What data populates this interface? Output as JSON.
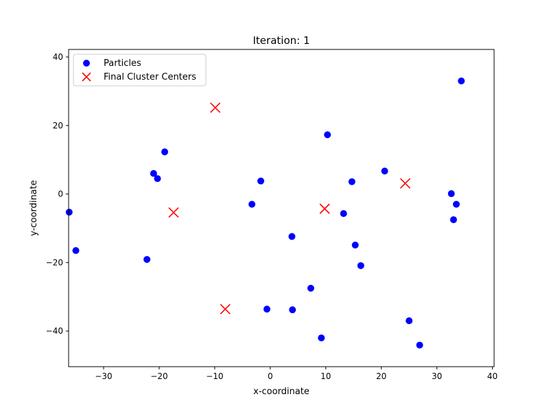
{
  "chart_data": {
    "type": "scatter",
    "title": "Iteration: 1",
    "xlabel": "x-coordinate",
    "ylabel": "y-coordinate",
    "xlim": [
      -36.3,
      40.3
    ],
    "ylim": [
      -50.4,
      42.2
    ],
    "xticks": [
      -30,
      -20,
      -10,
      0,
      10,
      20,
      30,
      40
    ],
    "xtick_labels": [
      "−30",
      "−20",
      "−10",
      "0",
      "10",
      "20",
      "30",
      "40"
    ],
    "yticks": [
      -40,
      -20,
      0,
      20,
      40
    ],
    "ytick_labels": [
      "−40",
      "−20",
      "0",
      "20",
      "40"
    ],
    "grid": false,
    "legend_position": "top-left",
    "series": [
      {
        "name": "Particles",
        "marker": "circle",
        "color": "#0000ff",
        "points": [
          {
            "x": 34.4,
            "y": 33.0
          },
          {
            "x": 10.3,
            "y": 17.3
          },
          {
            "x": -19.0,
            "y": 12.3
          },
          {
            "x": -21.0,
            "y": 6.0
          },
          {
            "x": -20.3,
            "y": 4.5
          },
          {
            "x": -1.7,
            "y": 3.8
          },
          {
            "x": 20.6,
            "y": 6.7
          },
          {
            "x": 14.7,
            "y": 3.6
          },
          {
            "x": 32.6,
            "y": 0.1
          },
          {
            "x": 33.5,
            "y": -3.0
          },
          {
            "x": 33.0,
            "y": -7.5
          },
          {
            "x": -36.2,
            "y": -5.3
          },
          {
            "x": -3.3,
            "y": -3.0
          },
          {
            "x": 13.2,
            "y": -5.7
          },
          {
            "x": 3.9,
            "y": -12.4
          },
          {
            "x": 15.3,
            "y": -14.9
          },
          {
            "x": 16.3,
            "y": -20.9
          },
          {
            "x": -35.0,
            "y": -16.5
          },
          {
            "x": -22.2,
            "y": -19.1
          },
          {
            "x": 7.3,
            "y": -27.5
          },
          {
            "x": -0.6,
            "y": -33.6
          },
          {
            "x": 4.0,
            "y": -33.8
          },
          {
            "x": 9.2,
            "y": -42.0
          },
          {
            "x": 25.0,
            "y": -37.0
          },
          {
            "x": 26.9,
            "y": -44.1
          }
        ]
      },
      {
        "name": "Final Cluster Centers",
        "marker": "x",
        "color": "#ff0000",
        "points": [
          {
            "x": -9.9,
            "y": 25.2
          },
          {
            "x": -17.4,
            "y": -5.4
          },
          {
            "x": 9.8,
            "y": -4.3
          },
          {
            "x": 24.3,
            "y": 3.1
          },
          {
            "x": -8.1,
            "y": -33.6
          }
        ]
      }
    ]
  }
}
